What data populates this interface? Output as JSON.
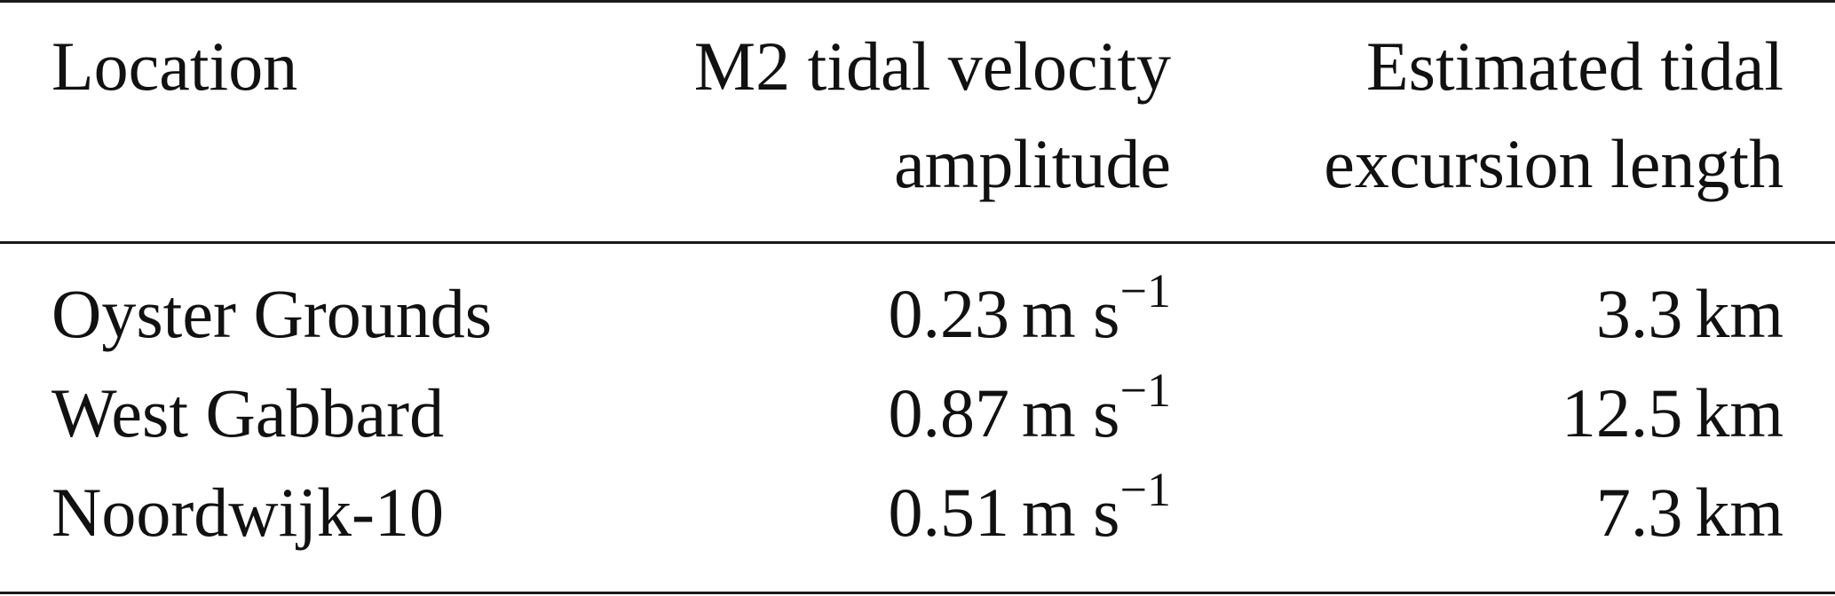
{
  "table": {
    "headers": {
      "location": "Location",
      "velocity_line1": "M2 tidal velocity",
      "velocity_line2": "amplitude",
      "excursion_line1": "Estimated tidal",
      "excursion_line2": "excursion length"
    },
    "rows": [
      {
        "location": "Oyster Grounds",
        "velocity": "0.23",
        "velocity_unit": "m s",
        "velocity_exp": "−1",
        "excursion": "3.3",
        "excursion_unit": "km"
      },
      {
        "location": "West Gabbard",
        "velocity": "0.87",
        "velocity_unit": "m s",
        "velocity_exp": "−1",
        "excursion": "12.5",
        "excursion_unit": "km"
      },
      {
        "location": "Noordwijk-10",
        "velocity": "0.51",
        "velocity_unit": "m s",
        "velocity_exp": "−1",
        "excursion": "7.3",
        "excursion_unit": "km"
      }
    ]
  }
}
